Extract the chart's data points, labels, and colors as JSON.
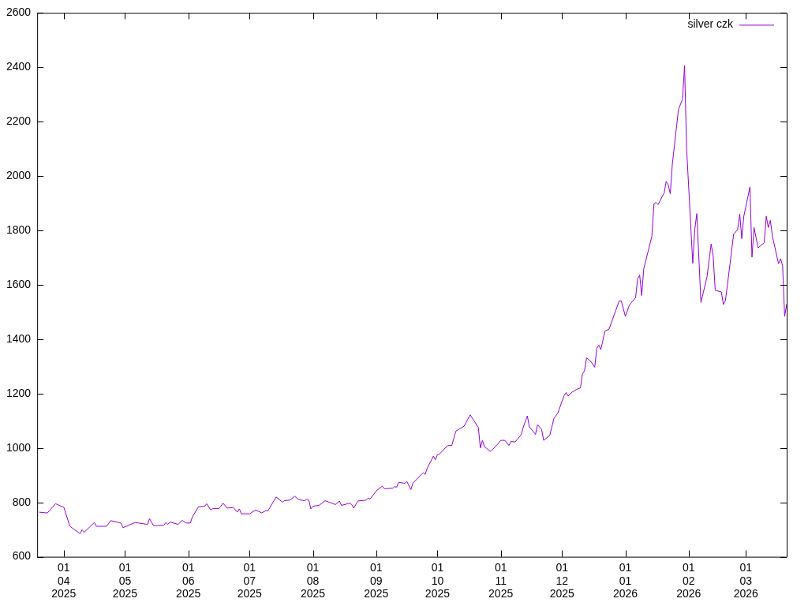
{
  "chart_data": {
    "type": "line",
    "legend": "top right",
    "grid": false,
    "marker": "none",
    "line_style": "solid",
    "xlim": [
      "2025-03-19",
      "2026-03-21"
    ],
    "xticks": [
      {
        "value": "2025-04-01",
        "label": "01 04 2025"
      },
      {
        "value": "2025-05-01",
        "label": "01 05 2025"
      },
      {
        "value": "2025-06-01",
        "label": "01 06 2025"
      },
      {
        "value": "2025-07-01",
        "label": "01 07 2025"
      },
      {
        "value": "2025-08-01",
        "label": "01 08 2025"
      },
      {
        "value": "2025-09-01",
        "label": "01 09 2025"
      },
      {
        "value": "2025-10-01",
        "label": "01 10 2025"
      },
      {
        "value": "2025-11-01",
        "label": "01 11 2025"
      },
      {
        "value": "2025-12-01",
        "label": "01 12 2025"
      },
      {
        "value": "2026-01-01",
        "label": "01 01 2026"
      },
      {
        "value": "2026-02-01",
        "label": "01 02 2026"
      },
      {
        "value": "2026-03-01",
        "label": "01 03 2026"
      }
    ],
    "ylim": [
      600,
      2600
    ],
    "yticks": [
      600,
      800,
      1000,
      1200,
      1400,
      1600,
      1800,
      2000,
      2200,
      2400,
      2600
    ],
    "x": [
      "2025-03-20",
      "2025-03-24",
      "2025-03-28",
      "2025-03-31",
      "2025-04-01",
      "2025-04-04",
      "2025-04-09",
      "2025-04-10",
      "2025-04-11",
      "2025-04-16",
      "2025-04-17",
      "2025-04-22",
      "2025-04-24",
      "2025-04-29",
      "2025-04-30",
      "2025-05-06",
      "2025-05-12",
      "2025-05-13",
      "2025-05-15",
      "2025-05-20",
      "2025-05-21",
      "2025-05-22",
      "2025-05-23",
      "2025-05-27",
      "2025-05-29",
      "2025-05-31",
      "2025-06-02",
      "2025-06-03",
      "2025-06-06",
      "2025-06-09",
      "2025-06-10",
      "2025-06-12",
      "2025-06-13",
      "2025-06-16",
      "2025-06-18",
      "2025-06-20",
      "2025-06-23",
      "2025-06-25",
      "2025-06-26",
      "2025-06-27",
      "2025-07-01",
      "2025-07-04",
      "2025-07-07",
      "2025-07-09",
      "2025-07-10",
      "2025-07-14",
      "2025-07-17",
      "2025-07-18",
      "2025-07-21",
      "2025-07-23",
      "2025-07-25",
      "2025-07-28",
      "2025-07-29",
      "2025-07-30",
      "2025-07-31",
      "2025-08-01",
      "2025-08-04",
      "2025-08-07",
      "2025-08-12",
      "2025-08-14",
      "2025-08-15",
      "2025-08-19",
      "2025-08-20",
      "2025-08-21",
      "2025-08-23",
      "2025-08-27",
      "2025-08-28",
      "2025-08-29",
      "2025-09-01",
      "2025-09-04",
      "2025-09-05",
      "2025-09-09",
      "2025-09-10",
      "2025-09-11",
      "2025-09-12",
      "2025-09-15",
      "2025-09-16",
      "2025-09-18",
      "2025-09-19",
      "2025-09-24",
      "2025-09-25",
      "2025-09-26",
      "2025-09-29",
      "2025-09-30",
      "2025-10-01",
      "2025-10-02",
      "2025-10-06",
      "2025-10-08",
      "2025-10-09",
      "2025-10-10",
      "2025-10-14",
      "2025-10-17",
      "2025-10-21",
      "2025-10-22",
      "2025-10-23",
      "2025-10-24",
      "2025-10-27",
      "2025-10-30",
      "2025-11-01",
      "2025-11-03",
      "2025-11-05",
      "2025-11-06",
      "2025-11-08",
      "2025-11-11",
      "2025-11-12",
      "2025-11-14",
      "2025-11-15",
      "2025-11-18",
      "2025-11-19",
      "2025-11-21",
      "2025-11-22",
      "2025-11-25",
      "2025-11-27",
      "2025-11-29",
      "2025-12-02",
      "2025-12-03",
      "2025-12-04",
      "2025-12-06",
      "2025-12-08",
      "2025-12-10",
      "2025-12-11",
      "2025-12-12",
      "2025-12-13",
      "2025-12-15",
      "2025-12-17",
      "2025-12-18",
      "2025-12-19",
      "2025-12-20",
      "2025-12-22",
      "2025-12-24",
      "2025-12-29",
      "2025-12-30",
      "2026-01-01",
      "2026-01-03",
      "2026-01-06",
      "2026-01-07",
      "2026-01-08",
      "2026-01-09",
      "2026-01-10",
      "2026-01-14",
      "2026-01-15",
      "2026-01-16",
      "2026-01-17",
      "2026-01-20",
      "2026-01-21",
      "2026-01-22",
      "2026-01-23",
      "2026-01-24",
      "2026-01-27",
      "2026-01-29",
      "2026-01-30",
      "2026-01-31",
      "2026-02-03",
      "2026-02-04",
      "2026-02-05",
      "2026-02-07",
      "2026-02-10",
      "2026-02-12",
      "2026-02-13",
      "2026-02-14",
      "2026-02-17",
      "2026-02-18",
      "2026-02-19",
      "2026-02-20",
      "2026-02-23",
      "2026-02-25",
      "2026-02-26",
      "2026-02-27",
      "2026-02-28",
      "2026-03-03",
      "2026-03-04",
      "2026-03-05",
      "2026-03-07",
      "2026-03-10",
      "2026-03-11",
      "2026-03-12",
      "2026-03-13",
      "2026-03-14",
      "2026-03-17",
      "2026-03-18",
      "2026-03-19",
      "2026-03-20",
      "2026-03-21"
    ],
    "series": [
      {
        "name": "silver czk",
        "color": "#9400d3",
        "values": [
          764,
          761,
          795,
          785,
          783,
          712,
          685,
          699,
          690,
          726,
          712,
          712,
          733,
          724,
          707,
          726,
          719,
          740,
          714,
          716,
          726,
          719,
          728,
          719,
          734,
          724,
          724,
          747,
          784,
          786,
          795,
          772,
          777,
          777,
          797,
          779,
          781,
          764,
          776,
          758,
          758,
          772,
          761,
          770,
          769,
          820,
          801,
          806,
          809,
          823,
          810,
          806,
          812,
          808,
          776,
          786,
          789,
          806,
          792,
          805,
          789,
          797,
          792,
          779,
          805,
          808,
          816,
          812,
          842,
          860,
          850,
          852,
          858,
          856,
          874,
          870,
          877,
          847,
          871,
          909,
          903,
          926,
          970,
          957,
          976,
          978,
          1009,
          1009,
          1035,
          1062,
          1080,
          1122,
          1076,
          1000,
          1028,
          1005,
          987,
          1010,
          1028,
          1028,
          1009,
          1024,
          1022,
          1049,
          1076,
          1118,
          1078,
          1050,
          1086,
          1068,
          1028,
          1047,
          1108,
          1130,
          1193,
          1204,
          1191,
          1206,
          1215,
          1221,
          1273,
          1284,
          1332,
          1319,
          1297,
          1366,
          1378,
          1362,
          1430,
          1437,
          1541,
          1541,
          1484,
          1526,
          1553,
          1622,
          1636,
          1561,
          1659,
          1779,
          1898,
          1903,
          1895,
          1938,
          1981,
          1967,
          1935,
          2044,
          2244,
          2284,
          2407,
          2101,
          1679,
          1805,
          1862,
          1535,
          1630,
          1750,
          1707,
          1580,
          1574,
          1528,
          1542,
          1601,
          1786,
          1803,
          1861,
          1770,
          1852,
          1960,
          1702,
          1811,
          1736,
          1755,
          1852,
          1811,
          1837,
          1779,
          1678,
          1696,
          1671,
          1484,
          1529
        ]
      }
    ]
  }
}
